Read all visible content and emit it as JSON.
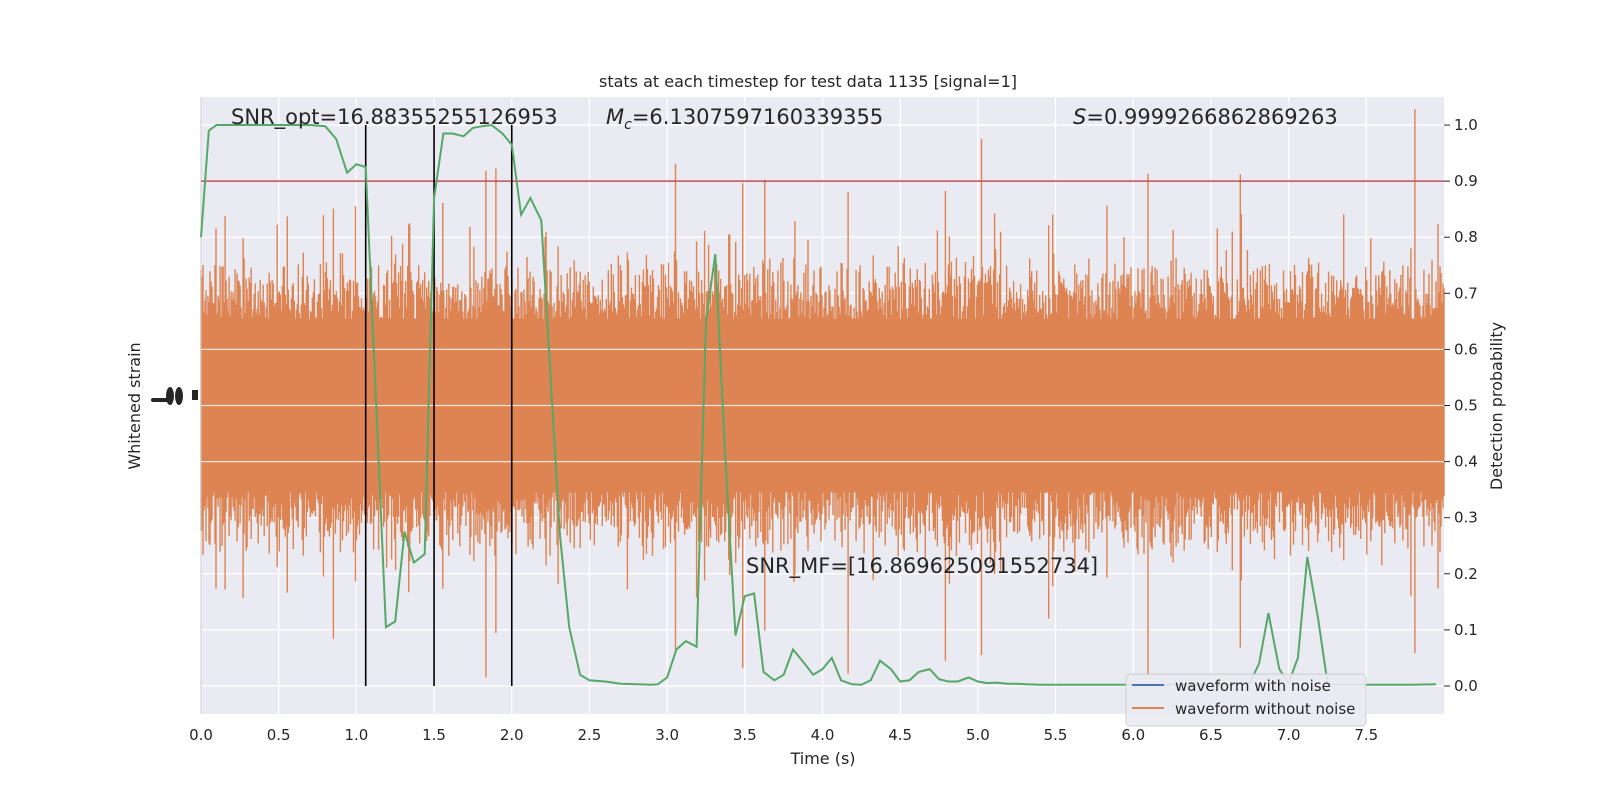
{
  "chart_data": {
    "type": "line",
    "title": "stats at each timestep for test data 1135 [signal=1]",
    "xlabel": "Time (s)",
    "ylabel_left": "Whitened strain",
    "ylabel_right": "Detection probability",
    "xlim": [
      0,
      8
    ],
    "ylim_right": [
      -0.05,
      1.05
    ],
    "x_ticks": [
      "0.0",
      "0.5",
      "1.0",
      "1.5",
      "2.0",
      "2.5",
      "3.0",
      "3.5",
      "4.0",
      "4.5",
      "5.0",
      "5.5",
      "6.0",
      "6.5",
      "7.0",
      "7.5"
    ],
    "y_ticks_right": [
      "0.0",
      "0.1",
      "0.2",
      "0.3",
      "0.4",
      "0.5",
      "0.6",
      "0.7",
      "0.8",
      "0.9",
      "1.0"
    ],
    "grid": true,
    "legend": {
      "placement": "lower-right",
      "entries": [
        {
          "label": "waveform with noise",
          "color": "#4c72b0"
        },
        {
          "label": "waveform without noise",
          "color": "#dd8452"
        }
      ]
    },
    "annotations": {
      "snr_opt": "SNR_opt=16.88355255126953",
      "mc_symbol": "M",
      "mc_subscript": "c",
      "mc_value": "=6.1307597160339355",
      "s_symbol": "S",
      "s_value": "=0.9999266862869263",
      "snr_mf": "SNR_MF=[16.869625091552734]"
    },
    "threshold": {
      "y": 0.9,
      "color": "#c44e52"
    },
    "vlines": [
      1.06,
      1.5,
      2.0
    ],
    "series": [
      {
        "color": "#55a868",
        "x": [
          0,
          0.05,
          0.1,
          0.2,
          0.3,
          0.4,
          0.5,
          0.6,
          0.7,
          0.8,
          0.87,
          0.94,
          1.0,
          1.06,
          1.12,
          1.19,
          1.25,
          1.31,
          1.37,
          1.44,
          1.5,
          1.56,
          1.62,
          1.69,
          1.75,
          1.81,
          1.87,
          1.94,
          2.0,
          2.06,
          2.12,
          2.19,
          2.25,
          2.31,
          2.37,
          2.44,
          2.5,
          2.6,
          2.7,
          2.8,
          2.9,
          2.94,
          3.0,
          3.06,
          3.12,
          3.19,
          3.25,
          3.31,
          3.37,
          3.44,
          3.5,
          3.56,
          3.62,
          3.69,
          3.75,
          3.81,
          3.87,
          3.94,
          4.0,
          4.06,
          4.12,
          4.19,
          4.25,
          4.31,
          4.37,
          4.44,
          4.5,
          4.56,
          4.62,
          4.69,
          4.75,
          4.81,
          4.87,
          4.94,
          5.0,
          5.06,
          5.12,
          5.19,
          5.25,
          5.31,
          5.4,
          5.6,
          5.8,
          6.0,
          6.2,
          6.4,
          6.6,
          6.75,
          6.81,
          6.87,
          6.94,
          7.0,
          7.06,
          7.12,
          7.19,
          7.25,
          7.31,
          7.4,
          7.6,
          7.8,
          7.95
        ],
        "y": [
          0.8,
          0.99,
          1.0,
          1.0,
          1.0,
          1.0,
          1.0,
          1.0,
          1.0,
          0.998,
          0.975,
          0.915,
          0.93,
          0.925,
          0.55,
          0.105,
          0.115,
          0.275,
          0.22,
          0.235,
          0.87,
          0.985,
          0.985,
          0.98,
          0.995,
          0.998,
          1.0,
          0.985,
          0.965,
          0.84,
          0.87,
          0.83,
          0.55,
          0.27,
          0.105,
          0.02,
          0.01,
          0.008,
          0.004,
          0.003,
          0.002,
          0.003,
          0.015,
          0.065,
          0.08,
          0.07,
          0.65,
          0.77,
          0.43,
          0.09,
          0.16,
          0.165,
          0.025,
          0.01,
          0.02,
          0.065,
          0.045,
          0.02,
          0.03,
          0.05,
          0.01,
          0.003,
          0.002,
          0.01,
          0.045,
          0.03,
          0.008,
          0.01,
          0.025,
          0.03,
          0.012,
          0.008,
          0.008,
          0.015,
          0.008,
          0.005,
          0.006,
          0.004,
          0.004,
          0.003,
          0.002,
          0.002,
          0.002,
          0.002,
          0.002,
          0.002,
          0.002,
          0.005,
          0.04,
          0.13,
          0.03,
          0.005,
          0.05,
          0.23,
          0.12,
          0.005,
          0.002,
          0.002,
          0.002,
          0.002,
          0.003
        ]
      }
    ]
  }
}
